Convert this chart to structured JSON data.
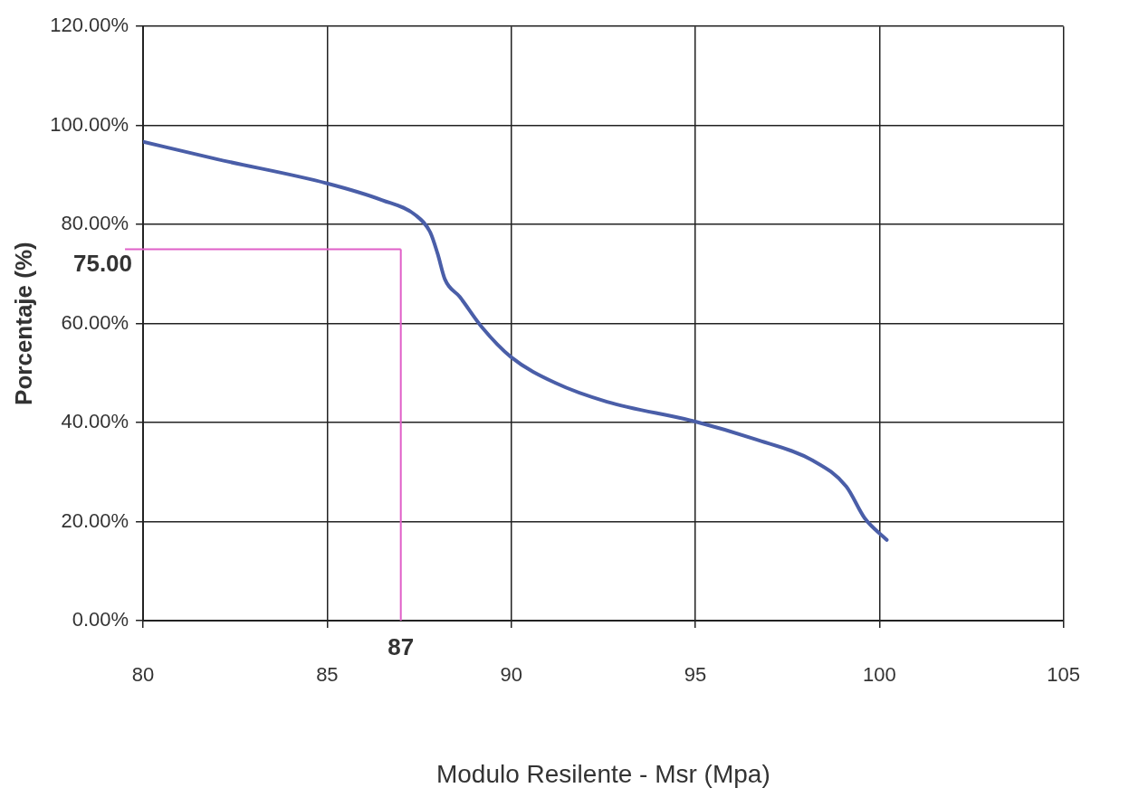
{
  "chart_data": {
    "type": "line",
    "xlabel": "Modulo Resilente - Msr (Mpa)",
    "ylabel": "Porcentaje (%)",
    "series": [
      {
        "color": "#4a5ea8",
        "x": [
          80,
          82,
          85,
          86.5,
          87.4,
          87.8,
          88,
          88.2,
          88.6,
          89.2,
          90,
          91.2,
          92.6,
          95,
          96.6,
          98.2,
          99.1,
          99.6,
          100.2
        ],
        "values": [
          96.7,
          93.2,
          88.3,
          84.9,
          81.9,
          78.4,
          74.1,
          68.9,
          65.4,
          59.3,
          53.2,
          48,
          44.2,
          40.2,
          36.7,
          32.3,
          27.1,
          20.7,
          16.3
        ]
      }
    ],
    "xlim": [
      80,
      105
    ],
    "xticks": [
      80,
      85,
      90,
      95,
      100,
      105
    ],
    "ylim": [
      0,
      120
    ],
    "yticks": [
      {
        "value": 0,
        "label": "0.00%"
      },
      {
        "value": 20,
        "label": "20.00%"
      },
      {
        "value": 40,
        "label": "40.00%"
      },
      {
        "value": 60,
        "label": "60.00%"
      },
      {
        "value": 80,
        "label": "80.00%"
      },
      {
        "value": 100,
        "label": "100.00%"
      },
      {
        "value": 120,
        "label": "120.00%"
      }
    ],
    "grid": true,
    "marker": "none",
    "line_style": "solid",
    "ref_lines": [
      {
        "axis": "x",
        "value": 87,
        "label": "87",
        "color": "#e060c8"
      },
      {
        "axis": "y",
        "value": 75,
        "label": "75.00",
        "color": "#e060c8"
      }
    ]
  }
}
